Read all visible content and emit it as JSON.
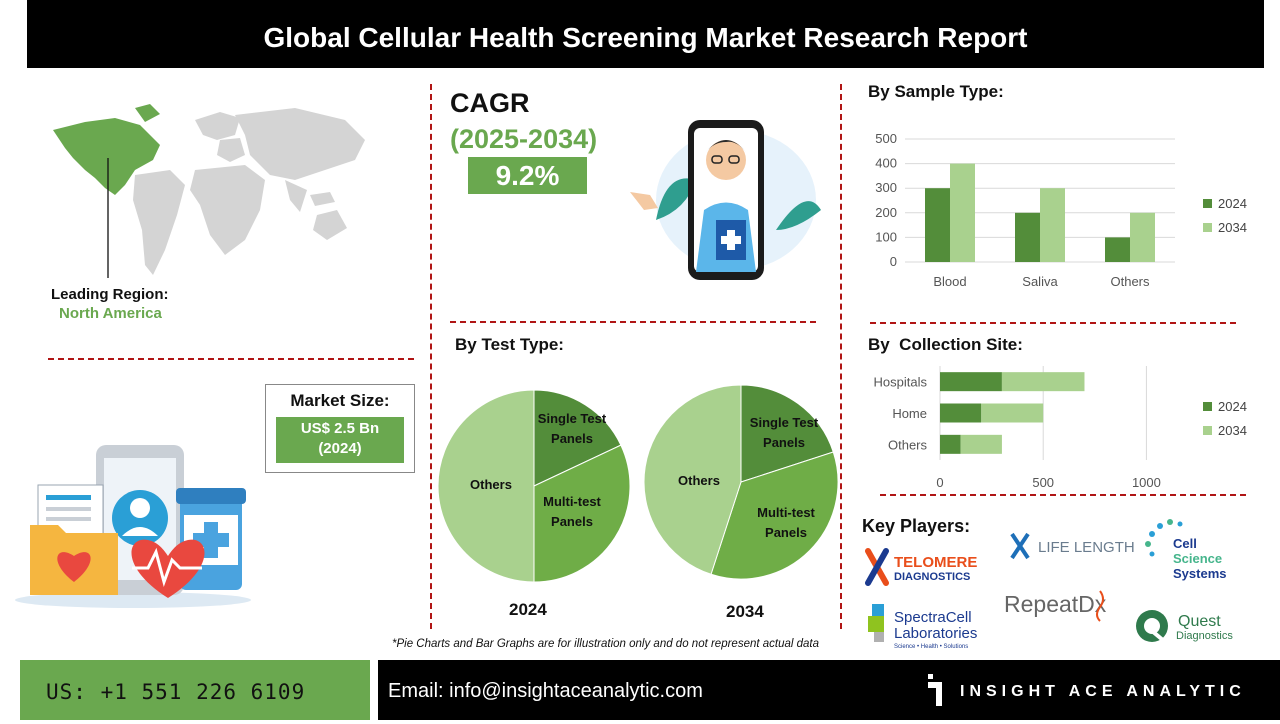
{
  "header": {
    "title": "Global Cellular Health Screening Market Research Report"
  },
  "region": {
    "label": "Leading Region:",
    "value": "North America"
  },
  "cagr": {
    "label": "CAGR",
    "years": "(2025-2034)",
    "value": "9.2%"
  },
  "market_size": {
    "label": "Market Size:",
    "value_line1": "US$ 2.5 Bn",
    "value_line2": "(2024)"
  },
  "sections": {
    "sample_type": "By Sample Type:",
    "test_type": "By Test Type:",
    "collection_site": "By  Collection Site:",
    "key_players": "Key Players:"
  },
  "colors": {
    "accent": "#6aa84f",
    "dark_green": "#538d3a",
    "light_green": "#a9d18e",
    "mid_green": "#6fad47",
    "divider": "#b01515"
  },
  "chart_data": [
    {
      "type": "bar",
      "id": "sample_type",
      "categories": [
        "Blood",
        "Saliva",
        "Others"
      ],
      "series": [
        {
          "name": "2024",
          "values": [
            300,
            200,
            100
          ]
        },
        {
          "name": "2034",
          "values": [
            400,
            300,
            200
          ]
        }
      ],
      "ylim": [
        0,
        500
      ],
      "yticks": [
        "0",
        "100",
        "200",
        "300",
        "400",
        "500"
      ],
      "grid": true,
      "legend": "right"
    },
    {
      "type": "pie",
      "id": "test_type_2024",
      "title": "2024",
      "slices": [
        {
          "label": "Single Test Panels",
          "value": 18
        },
        {
          "label": "Multi-test Panels",
          "value": 32
        },
        {
          "label": "Others",
          "value": 50
        }
      ]
    },
    {
      "type": "pie",
      "id": "test_type_2034",
      "title": "2034",
      "slices": [
        {
          "label": "Single Test Panels",
          "value": 20
        },
        {
          "label": "Multi-test Panels",
          "value": 35
        },
        {
          "label": "Others",
          "value": 45
        }
      ]
    },
    {
      "type": "bar",
      "id": "collection_site",
      "orientation": "horizontal",
      "stacked": true,
      "categories": [
        "Hospitals",
        "Home",
        "Others"
      ],
      "series": [
        {
          "name": "2024",
          "values": [
            300,
            200,
            100
          ]
        },
        {
          "name": "2034",
          "values": [
            400,
            300,
            200
          ]
        }
      ],
      "xlim": [
        0,
        1000
      ],
      "xticks": [
        "0",
        "500",
        "1000"
      ],
      "grid": true,
      "legend": "right"
    }
  ],
  "pie_labels": {
    "single_line1": "Single Test",
    "single_line2": "Panels",
    "multi_line1": "Multi-test",
    "multi_line2": "Panels",
    "others": "Others"
  },
  "key_players": {
    "telomere_1": "TELOMERE",
    "telomere_2": "DIAGNOSTICS",
    "lifelength": "LIFE LENGTH",
    "css_1": "Cell",
    "css_2": "Science",
    "css_3": "Systems",
    "spectra_1": "SpectraCell",
    "spectra_2": "Laboratories",
    "spectra_3": "Science • Health • Solutions",
    "repeat": "RepeatDx",
    "quest_1": "Quest",
    "quest_2": "Diagnostics"
  },
  "note": "*Pie Charts and Bar Graphs are for illustration only and do not represent actual data",
  "footer": {
    "phone": "US: +1 551 226 6109",
    "email": "Email: info@insightaceanalytic.com",
    "brand": "INSIGHT ACE ANALYTIC"
  }
}
